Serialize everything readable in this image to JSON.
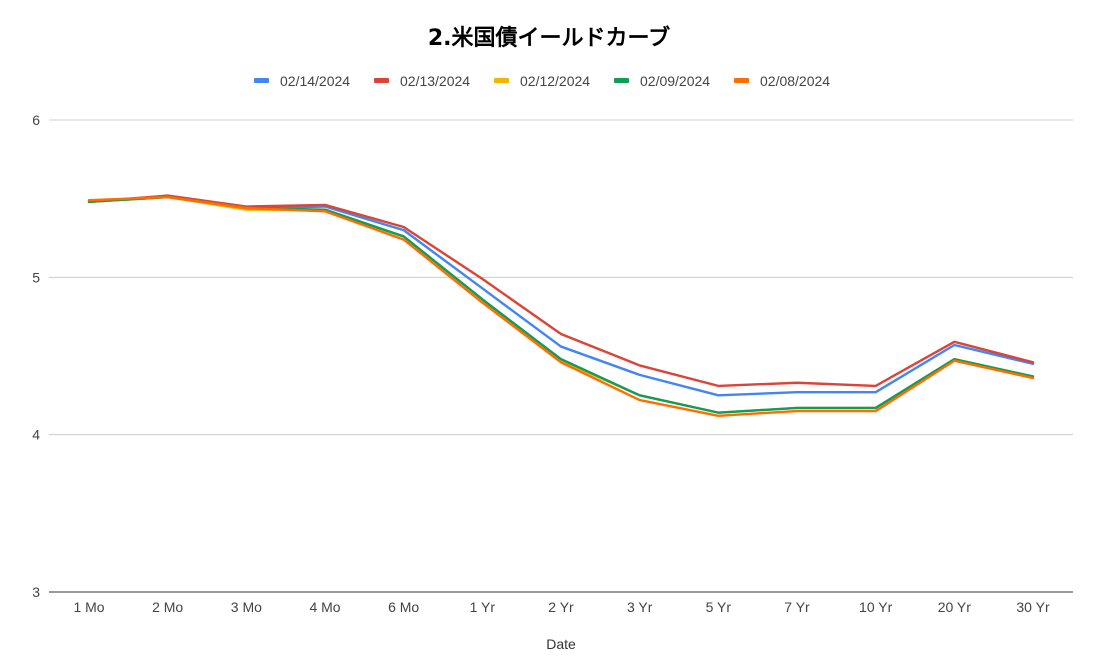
{
  "chart_data": {
    "type": "line",
    "title": "2.米国債イールドカーブ",
    "xlabel": "Date",
    "ylabel": "",
    "categories": [
      "1 Mo",
      "2 Mo",
      "3 Mo",
      "4 Mo",
      "6 Mo",
      "1 Yr",
      "2 Yr",
      "3 Yr",
      "5 Yr",
      "7 Yr",
      "10 Yr",
      "20 Yr",
      "30 Yr"
    ],
    "ylim": [
      3,
      6
    ],
    "yticks": [
      3,
      4,
      5,
      6
    ],
    "grid": true,
    "legend_position": "top",
    "series": [
      {
        "name": "02/14/2024",
        "color": "#4285F4",
        "values": [
          5.48,
          5.51,
          5.44,
          5.45,
          5.3,
          4.93,
          4.56,
          4.38,
          4.25,
          4.27,
          4.27,
          4.57,
          4.45
        ]
      },
      {
        "name": "02/13/2024",
        "color": "#DB4437",
        "values": [
          5.48,
          5.52,
          5.45,
          5.46,
          5.32,
          4.99,
          4.64,
          4.44,
          4.31,
          4.33,
          4.31,
          4.59,
          4.46
        ]
      },
      {
        "name": "02/12/2024",
        "color": "#F4B400",
        "values": [
          5.48,
          5.51,
          5.43,
          5.43,
          5.26,
          4.86,
          4.47,
          4.25,
          4.14,
          4.17,
          4.17,
          4.48,
          4.37
        ]
      },
      {
        "name": "02/09/2024",
        "color": "#0F9D58",
        "values": [
          5.48,
          5.51,
          5.44,
          5.43,
          5.26,
          4.86,
          4.48,
          4.25,
          4.14,
          4.17,
          4.17,
          4.48,
          4.37
        ]
      },
      {
        "name": "02/08/2024",
        "color": "#FF6D00",
        "values": [
          5.49,
          5.51,
          5.44,
          5.42,
          5.24,
          4.84,
          4.46,
          4.22,
          4.12,
          4.15,
          4.15,
          4.47,
          4.36
        ]
      }
    ]
  }
}
